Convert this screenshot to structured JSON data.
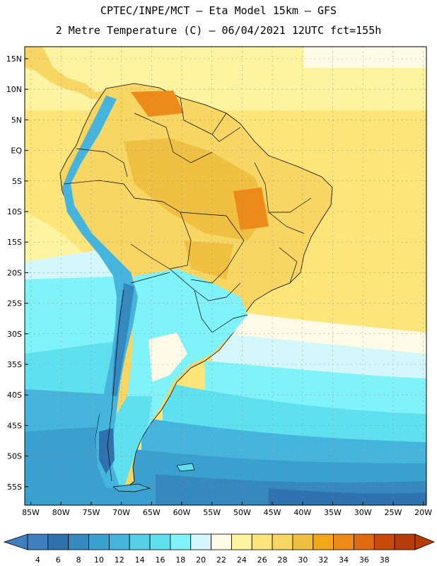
{
  "header": {
    "line1": "CPTEC/INPE/MCT –  Eta Model 15km – GFS",
    "line2": "2 Metre Temperature (C) – 06/04/2021 12UTC fct=155h"
  },
  "axes": {
    "lat_labels": [
      "15N",
      "10N",
      "5N",
      "EQ",
      "5S",
      "10S",
      "15S",
      "20S",
      "25S",
      "30S",
      "35S",
      "40S",
      "45S",
      "50S",
      "55S"
    ],
    "lon_labels": [
      "85W",
      "80W",
      "75W",
      "70W",
      "65W",
      "60W",
      "55W",
      "50W",
      "45W",
      "40W",
      "35W",
      "30W",
      "25W",
      "20W"
    ]
  },
  "colorbar": {
    "labels": [
      "4",
      "6",
      "8",
      "10",
      "12",
      "14",
      "16",
      "18",
      "20",
      "22",
      "24",
      "26",
      "28",
      "30",
      "32",
      "34",
      "36",
      "38"
    ],
    "colors": [
      "#3f7fbf",
      "#2f72b0",
      "#3589bf",
      "#3aa0cf",
      "#45b5dd",
      "#55cfe6",
      "#5fe0ee",
      "#7ff3f9",
      "#d4f7fb",
      "#fffbe6",
      "#fdf3a0",
      "#fde57a",
      "#f8d664",
      "#efc042",
      "#f2a618",
      "#ec8a1a",
      "#e06a10",
      "#c84a08",
      "#b83c08"
    ]
  },
  "palette": {
    "ocean_warm": "#fde57a",
    "ocean_cool": "#5fe0ee",
    "ocean_cold": "#2f72b0",
    "land_warm": "#f8d664",
    "land_hot": "#efc042",
    "andes_cold": "#45b5dd",
    "border": "#000000"
  }
}
